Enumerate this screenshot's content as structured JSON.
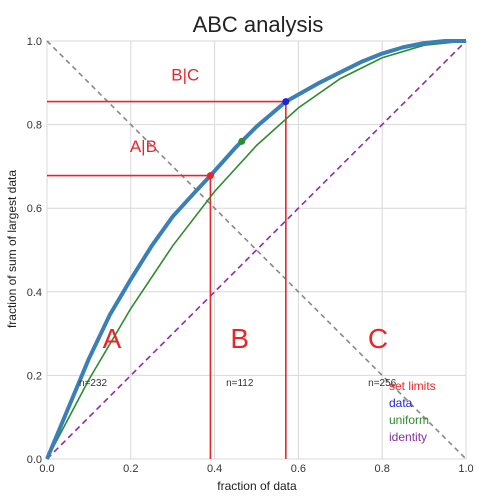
{
  "chart_data": {
    "type": "line",
    "title": "ABC analysis",
    "xlabel": "fraction of data",
    "ylabel": "fraction of sum of largest data",
    "xlim": [
      0,
      1
    ],
    "ylim": [
      0,
      1
    ],
    "grid": true,
    "xticks": [
      "0.0",
      "0.2",
      "0.4",
      "0.6",
      "0.8",
      "1.0"
    ],
    "yticks": [
      "0.0",
      "0.2",
      "0.4",
      "0.6",
      "0.8",
      "1.0"
    ],
    "colors": {
      "data": "#3a7fb5",
      "uniform": "#2e8b2e",
      "identity": "#8b2fa0",
      "limits": "#e8262a",
      "diagonal": "#888888"
    },
    "series": [
      {
        "name": "data",
        "x": [
          0,
          0.05,
          0.1,
          0.15,
          0.2,
          0.25,
          0.3,
          0.35,
          0.39,
          0.45,
          0.5,
          0.57,
          0.65,
          0.7,
          0.75,
          0.8,
          0.85,
          0.9,
          0.95,
          1.0
        ],
        "y": [
          0,
          0.12,
          0.24,
          0.345,
          0.43,
          0.51,
          0.58,
          0.635,
          0.678,
          0.745,
          0.795,
          0.855,
          0.9,
          0.925,
          0.95,
          0.97,
          0.985,
          0.995,
          1.0,
          1.0
        ]
      },
      {
        "name": "uniform",
        "x": [
          0,
          0.1,
          0.2,
          0.3,
          0.4,
          0.5,
          0.6,
          0.7,
          0.8,
          0.9,
          1.0
        ],
        "y": [
          0,
          0.19,
          0.36,
          0.51,
          0.64,
          0.75,
          0.84,
          0.91,
          0.96,
          0.99,
          1.0
        ]
      },
      {
        "name": "identity",
        "x": [
          0,
          1
        ],
        "y": [
          0,
          1
        ]
      }
    ],
    "diagonal": {
      "x": [
        0,
        1
      ],
      "y": [
        1,
        0
      ]
    },
    "markers": [
      {
        "name": "set limits",
        "x": 0.39,
        "y": 0.678,
        "color": "#e8262a"
      },
      {
        "name": "data",
        "x": 0.57,
        "y": 0.855,
        "color": "#2222dd"
      },
      {
        "name": "uniform",
        "x": 0.465,
        "y": 0.76,
        "color": "#2e8b2e"
      }
    ],
    "limits": [
      {
        "label": "A|B",
        "x": 0.39,
        "y": 0.678,
        "label_x": 0.23,
        "label_y": 0.735
      },
      {
        "label": "B|C",
        "x": 0.57,
        "y": 0.855,
        "label_x": 0.33,
        "label_y": 0.905
      }
    ],
    "regions": [
      {
        "label": "A",
        "count": "n=232",
        "x": 0.155,
        "count_x": 0.11
      },
      {
        "label": "B",
        "count": "n=112",
        "x": 0.46,
        "count_x": 0.46
      },
      {
        "label": "C",
        "count": "n=256",
        "x": 0.79,
        "count_x": 0.8
      }
    ],
    "legend": {
      "placement": "lower-right",
      "entries": [
        {
          "label": "set limits",
          "color": "#e8262a"
        },
        {
          "label": "data",
          "color": "#2222dd"
        },
        {
          "label": "uniform",
          "color": "#2e8b2e"
        },
        {
          "label": "identity",
          "color": "#8b2fa0"
        }
      ]
    }
  }
}
